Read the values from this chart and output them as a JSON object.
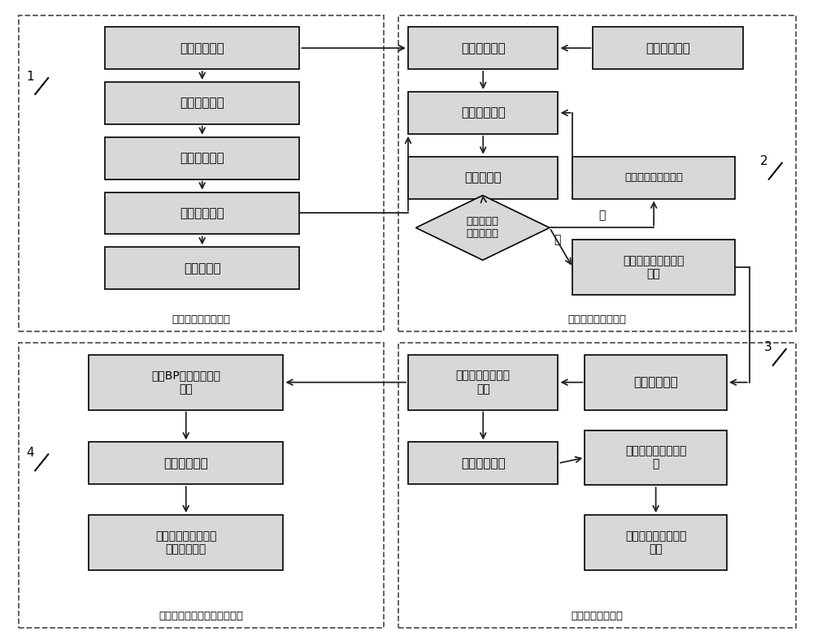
{
  "bg_color": "#ffffff",
  "box_fill": "#d8d8d8",
  "box_edge": "#000000",
  "arrow_color": "#222222",
  "dashed_color": "#555555",
  "figsize": [
    10.0,
    7.88
  ],
  "dpi": 100,
  "modules": {
    "module1_label": "数字孪生体建立模块",
    "module2_label": "数字孪生体校准模块",
    "module3_label": "故障数据生成模块",
    "module4_label": "故障预测模型训练及验证模块"
  }
}
